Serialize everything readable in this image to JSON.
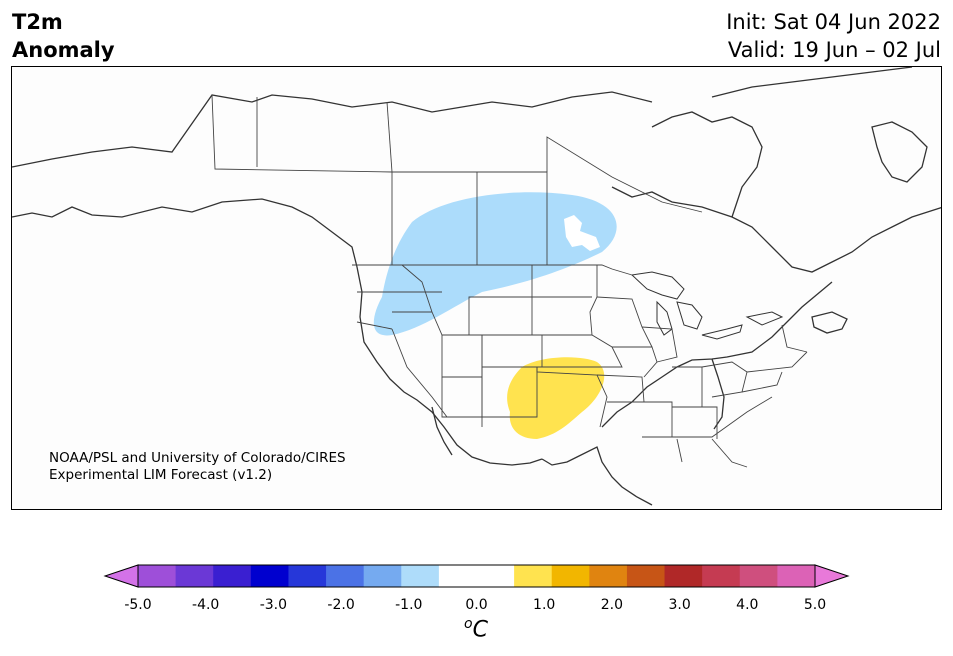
{
  "header": {
    "title_line1": "T2m",
    "title_line2": "Anomaly",
    "init": "Init: Sat 04 Jun 2022",
    "valid": "Valid: 19 Jun – 02 Jul"
  },
  "credit": {
    "line1": "NOAA/PSL and University of Colorado/CIRES",
    "line2": "Experimental LIM Forecast (v1.2)"
  },
  "colorbar": {
    "colors": [
      "#d372e8",
      "#9e4fd9",
      "#6b38d6",
      "#3a1fd1",
      "#0000cf",
      "#2637d9",
      "#4b72e6",
      "#75aaf0",
      "#aedcfa",
      "#ffffff",
      "#ffffff",
      "#ffe34f",
      "#f2b600",
      "#e08410",
      "#c75516",
      "#b02828",
      "#c53b52",
      "#cf4f7e",
      "#dc62b6",
      "#e879d9"
    ],
    "ticks": [
      "-5.0",
      "-4.0",
      "-3.0",
      "-2.0",
      "-1.0",
      "0.0",
      "1.0",
      "2.0",
      "3.0",
      "4.0",
      "5.0"
    ],
    "unit_sup": "o",
    "unit": "C"
  },
  "anomalies": {
    "cool_color": "#acdcfb",
    "warm_color": "#ffe34f"
  }
}
